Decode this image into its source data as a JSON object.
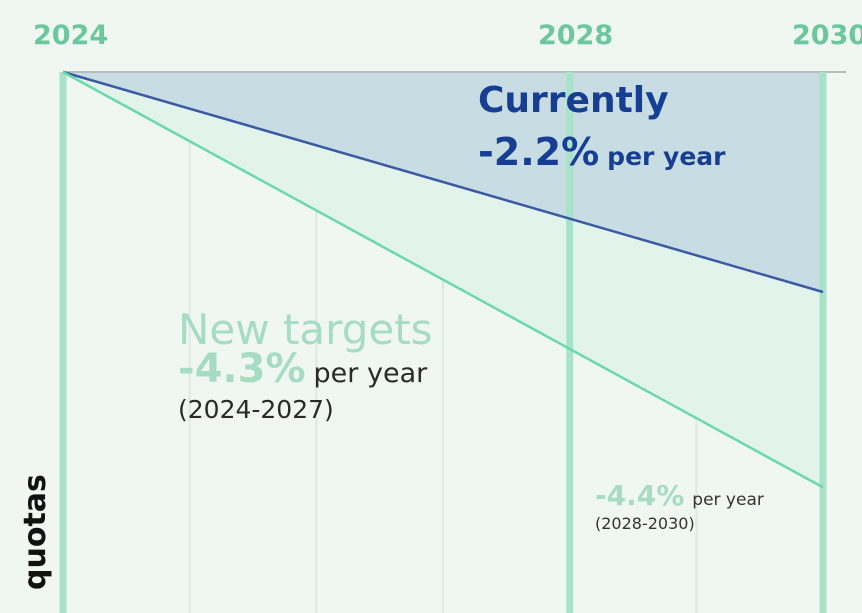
{
  "chart_data": {
    "type": "line",
    "x_ticks": [
      "2024",
      "2028",
      "2030"
    ],
    "xlim": [
      2024,
      2030
    ],
    "grid": true,
    "series": [
      {
        "key": "current",
        "x": [
          2024,
          2030
        ],
        "values": [
          0,
          -12.5
        ],
        "color": "#3a5aa5"
      },
      {
        "key": "new",
        "x": [
          2024,
          2030
        ],
        "values": [
          0,
          -23.6
        ],
        "color": "#6ad9aa"
      }
    ],
    "annotations": {
      "current_title": "Currently",
      "current_rate": "-2.2%",
      "current_unit": "per year",
      "new_title": "New targets",
      "new_rate": "-4.3%",
      "new_unit": "per year",
      "new_period": "(2024-2027)",
      "late_rate": "-4.4%",
      "late_unit": "per year",
      "late_period": "(2028-2030)"
    },
    "side_label": "quotas"
  },
  "colors": {
    "current_fill": "#c7dde3",
    "new_fill": "#e1f3ea",
    "year_line": "#a8e3c9",
    "grid_line": "#dde9e3",
    "top_line": "#b9bdbd"
  }
}
